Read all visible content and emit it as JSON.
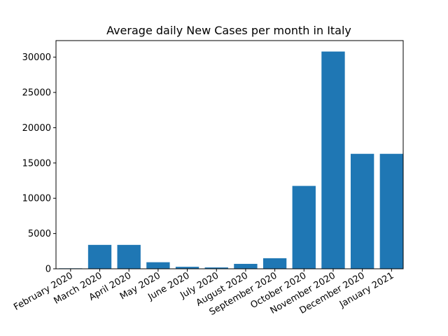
{
  "chart_data": {
    "type": "bar",
    "title": "Average daily New Cases per month in Italy",
    "xlabel": "",
    "ylabel": "",
    "categories": [
      "February 2020",
      "March 2020",
      "April 2020",
      "May 2020",
      "June 2020",
      "July 2020",
      "August 2020",
      "September 2020",
      "October 2020",
      "November 2020",
      "December 2020",
      "January 2021"
    ],
    "values": [
      70,
      3390,
      3390,
      930,
      280,
      190,
      700,
      1500,
      11750,
      30800,
      16300,
      16300
    ],
    "ylim": [
      0,
      32350
    ],
    "yticks": [
      0,
      5000,
      10000,
      15000,
      20000,
      25000,
      30000
    ],
    "grid": false,
    "bar_color": "#1f77b4"
  }
}
